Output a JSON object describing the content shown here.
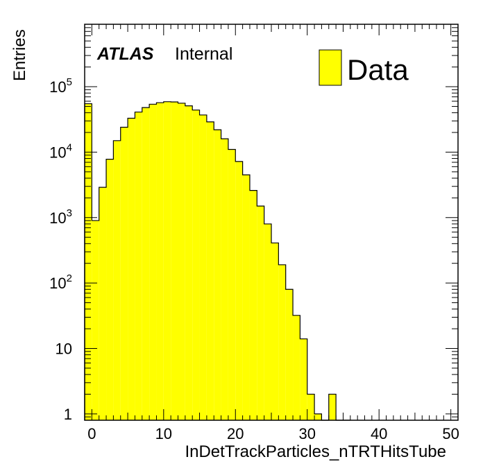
{
  "chart_data": {
    "type": "bar",
    "title": "",
    "xlabel": "InDetTrackParticles_nTRTHitsTube",
    "ylabel": "Entries",
    "xlim": [
      -1,
      51
    ],
    "ylim": [
      0.8,
      900000
    ],
    "yscale": "log",
    "grid": false,
    "legend_position": "top-right",
    "bar_color": "#ffff00",
    "edge_color": "#000000",
    "bin_width": 1,
    "x_tick_labels": [
      "0",
      "10",
      "20",
      "30",
      "40",
      "50"
    ],
    "y_tick_labels": [
      {
        "base": "1",
        "exp": ""
      },
      {
        "base": "10",
        "exp": ""
      },
      {
        "base": "10",
        "exp": "2"
      },
      {
        "base": "10",
        "exp": "3"
      },
      {
        "base": "10",
        "exp": "4"
      },
      {
        "base": "10",
        "exp": "5"
      }
    ],
    "series": [
      {
        "name": "Data",
        "x": [
          -0.5,
          0.5,
          1.5,
          2.5,
          3.5,
          4.5,
          5.5,
          6.5,
          7.5,
          8.5,
          9.5,
          10.5,
          11.5,
          12.5,
          13.5,
          14.5,
          15.5,
          16.5,
          17.5,
          18.5,
          19.5,
          20.5,
          21.5,
          22.5,
          23.5,
          24.5,
          25.5,
          26.5,
          27.5,
          28.5,
          29.5,
          30.5,
          31.5,
          32.5,
          33.5,
          34.5,
          35.5
        ],
        "values": [
          55000,
          900,
          2900,
          7800,
          15000,
          24000,
          33000,
          41000,
          48000,
          54000,
          57000,
          59000,
          58500,
          56000,
          51000,
          44000,
          37000,
          29000,
          22000,
          16000,
          11000,
          7200,
          4500,
          2600,
          1500,
          800,
          410,
          190,
          80,
          32,
          14,
          2,
          1,
          0,
          2,
          0,
          0
        ]
      }
    ]
  },
  "annotations": {
    "atlas": "ATLAS",
    "status": "Internal"
  },
  "legend": {
    "entries": [
      "Data"
    ]
  }
}
